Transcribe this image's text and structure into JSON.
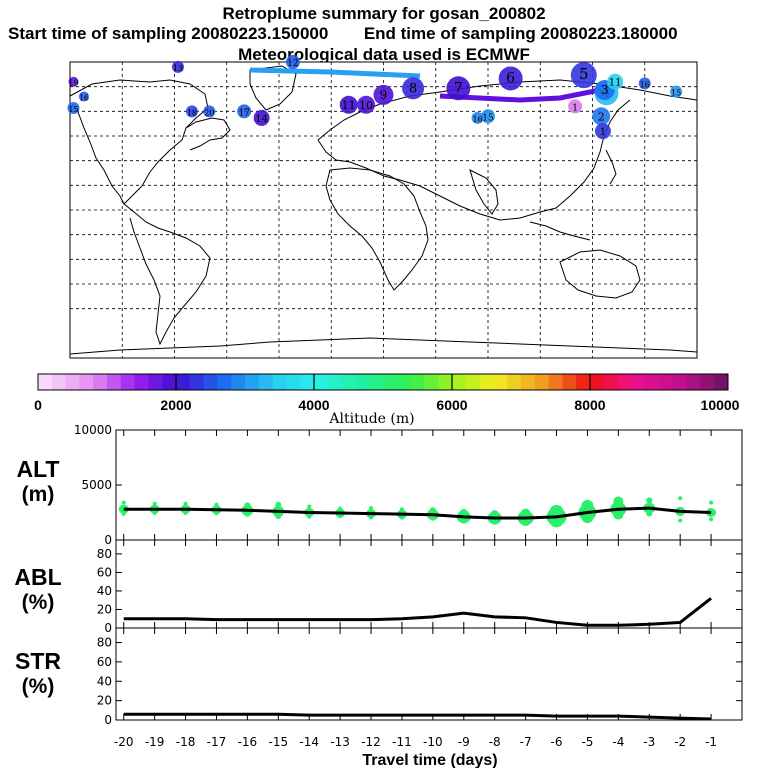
{
  "header": {
    "title": "Retroplume summary for gosan_200802",
    "start_label": "Start time of sampling 20080223.150000",
    "end_label": "End time of sampling 20080223.180000",
    "met_label": "Meteorological data used is ECMWF"
  },
  "map": {
    "markers": [
      {
        "label": "19",
        "lon": -178,
        "lat": 78,
        "alt": 1800,
        "size": 5
      },
      {
        "label": "16",
        "lon": -172,
        "lat": 69,
        "alt": 2600,
        "size": 5
      },
      {
        "label": "15",
        "lon": -178,
        "lat": 62,
        "alt": 2700,
        "size": 6
      },
      {
        "label": "13",
        "lon": -118,
        "lat": 87,
        "alt": 2200,
        "size": 6
      },
      {
        "label": "12",
        "lon": -52,
        "lat": 90,
        "alt": 2600,
        "size": 7
      },
      {
        "label": "18",
        "lon": -110,
        "lat": 60,
        "alt": 2400,
        "size": 6
      },
      {
        "label": "20",
        "lon": -100,
        "lat": 60,
        "alt": 2600,
        "size": 6
      },
      {
        "label": "17",
        "lon": -80,
        "lat": 60,
        "alt": 2600,
        "size": 7
      },
      {
        "label": "14",
        "lon": -70,
        "lat": 56,
        "alt": 2000,
        "size": 8
      },
      {
        "label": "11",
        "lon": -20,
        "lat": 64,
        "alt": 2000,
        "size": 9
      },
      {
        "label": "10",
        "lon": -10,
        "lat": 64,
        "alt": 1900,
        "size": 9
      },
      {
        "label": "9",
        "lon": 0,
        "lat": 70,
        "alt": 1900,
        "size": 10
      },
      {
        "label": "8",
        "lon": 17,
        "lat": 74,
        "alt": 2200,
        "size": 11
      },
      {
        "label": "7",
        "lon": 43,
        "lat": 74,
        "alt": 2000,
        "size": 12
      },
      {
        "label": "6",
        "lon": 73,
        "lat": 80,
        "alt": 2100,
        "size": 12
      },
      {
        "label": "5",
        "lon": 115,
        "lat": 82,
        "alt": 2300,
        "size": 13
      },
      {
        "label": "4",
        "lon": 128,
        "lat": 71,
        "alt": 3300,
        "size": 12
      },
      {
        "label": "3",
        "lon": 127,
        "lat": 73,
        "alt": 2700,
        "size": 10
      },
      {
        "label": "2",
        "lon": 125,
        "lat": 57,
        "alt": 2800,
        "size": 9
      },
      {
        "label": "1",
        "lon": 126,
        "lat": 48,
        "alt": 2300,
        "size": 8
      },
      {
        "label": "11",
        "lon": 133,
        "lat": 78,
        "alt": 3500,
        "size": 8
      },
      {
        "label": "16",
        "lon": 150,
        "lat": 77,
        "alt": 2600,
        "size": 6
      },
      {
        "label": "15",
        "lon": 168,
        "lat": 72,
        "alt": 3000,
        "size": 6
      },
      {
        "label": "15",
        "lon": 60,
        "lat": 57,
        "alt": 3000,
        "size": 7
      },
      {
        "label": "16",
        "lon": 54,
        "lat": 56,
        "alt": 2900,
        "size": 6
      },
      {
        "label": "1",
        "lon": 110,
        "lat": 63,
        "alt": 900,
        "size": 7
      }
    ]
  },
  "colorbar": {
    "tick_labels": [
      "0",
      "2000",
      "4000",
      "6000",
      "8000",
      "10000"
    ],
    "axis_label": "Altitude (m)"
  },
  "panels": {
    "alt_label": "ALT",
    "alt_unit": "(m)",
    "abl_label": "ABL",
    "abl_unit": "(%)",
    "str_label": "STR",
    "str_unit": "(%)",
    "xlabel": "Travel time (days)"
  },
  "chart_data": [
    {
      "type": "line",
      "title": "ALT",
      "xlabel": "Travel time (days)",
      "ylabel": "(m)",
      "ylim": [
        0,
        10000
      ],
      "y_ticks": [
        "10000",
        "5000",
        "0"
      ],
      "x": [
        -20,
        -19,
        -18,
        -17,
        -16,
        -15,
        -14,
        -13,
        -12,
        -11,
        -10,
        -9,
        -8,
        -7,
        -6,
        -5,
        -4,
        -3,
        -2,
        -1
      ],
      "x_tick_labels": [
        "-20",
        "-19",
        "-18",
        "-17",
        "-16",
        "-15",
        "-14",
        "-13",
        "-12",
        "-11",
        "-10",
        "-9",
        "-8",
        "-7",
        "-6",
        "-5",
        "-4",
        "-3",
        "-2",
        "-1"
      ],
      "values": [
        2800,
        2800,
        2800,
        2750,
        2700,
        2600,
        2500,
        2450,
        2400,
        2350,
        2300,
        2100,
        2000,
        2000,
        2100,
        2500,
        2800,
        2900,
        2600,
        2500
      ]
    },
    {
      "type": "line",
      "title": "ABL",
      "ylabel": "(%)",
      "ylim": [
        0,
        95
      ],
      "y_ticks": [
        "80",
        "60",
        "40",
        "20",
        "0"
      ],
      "x": [
        -20,
        -19,
        -18,
        -17,
        -16,
        -15,
        -14,
        -13,
        -12,
        -11,
        -10,
        -9,
        -8,
        -7,
        -6,
        -5,
        -4,
        -3,
        -2,
        -1
      ],
      "values": [
        10,
        10,
        10,
        9,
        9,
        9,
        9,
        9,
        9,
        10,
        12,
        16,
        12,
        11,
        6,
        3,
        3,
        4,
        6,
        32
      ]
    },
    {
      "type": "line",
      "title": "STR",
      "ylabel": "(%)",
      "ylim": [
        0,
        95
      ],
      "y_ticks": [
        "80",
        "60",
        "40",
        "20",
        "0"
      ],
      "x": [
        -20,
        -19,
        -18,
        -17,
        -16,
        -15,
        -14,
        -13,
        -12,
        -11,
        -10,
        -9,
        -8,
        -7,
        -6,
        -5,
        -4,
        -3,
        -2,
        -1
      ],
      "values": [
        6,
        6,
        6,
        6,
        6,
        6,
        5,
        5,
        5,
        5,
        5,
        5,
        5,
        5,
        4,
        4,
        4,
        3,
        2,
        1
      ]
    }
  ]
}
